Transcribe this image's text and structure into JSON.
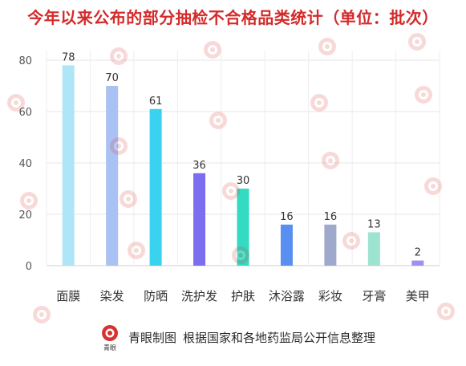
{
  "title": "今年以来公布的部分抽检不合格品类统计（单位：批次）",
  "chart_data": {
    "type": "bar",
    "categories": [
      "面膜",
      "染发",
      "防晒",
      "洗护发",
      "护肤",
      "沐浴露",
      "彩妆",
      "牙膏",
      "美甲"
    ],
    "values": [
      78,
      70,
      61,
      36,
      30,
      16,
      16,
      13,
      2
    ],
    "colors": [
      "#aee6f7",
      "#a9c2f3",
      "#3ad3ef",
      "#7b6ff0",
      "#33dbc2",
      "#5a8ff2",
      "#9ea9cb",
      "#9ce3d0",
      "#a08ff2"
    ],
    "ylim": [
      0,
      80
    ],
    "yticks": [
      0,
      20,
      40,
      60,
      80
    ],
    "grid": true,
    "title": "今年以来公布的部分抽检不合格品类统计（单位：批次）",
    "xlabel": "",
    "ylabel": ""
  },
  "footer": {
    "logo_text": "青眼",
    "credit": "青眼制图",
    "source": "根据国家和各地药监局公开信息整理"
  }
}
